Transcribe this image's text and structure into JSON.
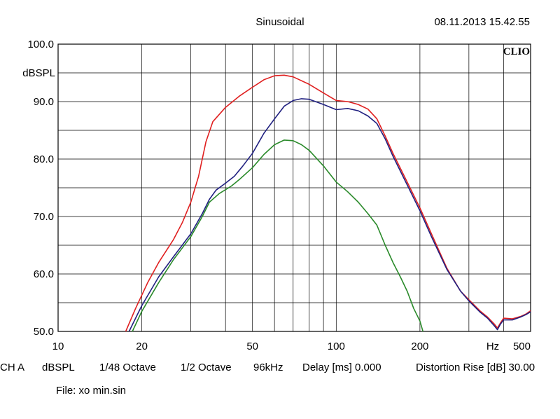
{
  "header": {
    "mode": "Sinusoidal",
    "datetime": "08.11.2013 15.42.55",
    "brand": "CLIO"
  },
  "footer": {
    "channel": "CH A",
    "unit": "dBSPL",
    "resolution": "1/48 Octave",
    "smoothing": "1/2 Octave",
    "sample_rate": "96kHz",
    "delay": "Delay [ms] 0.000",
    "distortion": "Distortion Rise [dB] 30.00",
    "file": "File: xo min.sin"
  },
  "chart_data": {
    "type": "line",
    "x_scale": "log",
    "xlim": [
      10,
      500
    ],
    "ylim": [
      50,
      100
    ],
    "grid": true,
    "ylabel": "dBSPL",
    "xlabel": "Hz",
    "x_ticks": [
      {
        "value": 10,
        "label": "10"
      },
      {
        "value": 20,
        "label": "20"
      },
      {
        "value": 50,
        "label": "50"
      },
      {
        "value": 100,
        "label": "100"
      },
      {
        "value": 200,
        "label": "200"
      },
      {
        "value": 500,
        "label": "500"
      }
    ],
    "y_ticks": [
      {
        "value": 100,
        "label": "100.0"
      },
      {
        "value": 90,
        "label": "90.0"
      },
      {
        "value": 80,
        "label": "80.0"
      },
      {
        "value": 70,
        "label": "70.0"
      },
      {
        "value": 60,
        "label": "60.0"
      },
      {
        "value": 50,
        "label": "50.0"
      }
    ],
    "series": [
      {
        "color": "#e02020",
        "points": [
          [
            17.5,
            50
          ],
          [
            19,
            54
          ],
          [
            21,
            58.5
          ],
          [
            23,
            62
          ],
          [
            26,
            66
          ],
          [
            28,
            69
          ],
          [
            30,
            72.5
          ],
          [
            32,
            77
          ],
          [
            34,
            83
          ],
          [
            36,
            86.5
          ],
          [
            40,
            89
          ],
          [
            45,
            91
          ],
          [
            50,
            92.5
          ],
          [
            55,
            93.8
          ],
          [
            60,
            94.5
          ],
          [
            65,
            94.6
          ],
          [
            70,
            94.3
          ],
          [
            80,
            93
          ],
          [
            90,
            91.5
          ],
          [
            100,
            90.2
          ],
          [
            110,
            90
          ],
          [
            120,
            89.5
          ],
          [
            130,
            88.7
          ],
          [
            140,
            87
          ],
          [
            150,
            84
          ],
          [
            160,
            81
          ],
          [
            180,
            76
          ],
          [
            200,
            71.5
          ],
          [
            220,
            67
          ],
          [
            250,
            61
          ],
          [
            280,
            57
          ],
          [
            300,
            55.5
          ],
          [
            330,
            53.5
          ],
          [
            350,
            52.5
          ],
          [
            370,
            51.3
          ],
          [
            380,
            50.6
          ],
          [
            390,
            51.5
          ],
          [
            400,
            52.3
          ],
          [
            430,
            52.2
          ],
          [
            460,
            52.6
          ],
          [
            480,
            53
          ],
          [
            500,
            53.6
          ]
        ]
      },
      {
        "color": "#202080",
        "points": [
          [
            18,
            50
          ],
          [
            20,
            54.5
          ],
          [
            23,
            59.5
          ],
          [
            26,
            63
          ],
          [
            30,
            67
          ],
          [
            33,
            70.5
          ],
          [
            35,
            73
          ],
          [
            37,
            74.6
          ],
          [
            40,
            75.8
          ],
          [
            43,
            77
          ],
          [
            46,
            78.7
          ],
          [
            50,
            81
          ],
          [
            55,
            84.5
          ],
          [
            60,
            87
          ],
          [
            65,
            89.2
          ],
          [
            70,
            90.2
          ],
          [
            75,
            90.5
          ],
          [
            80,
            90.4
          ],
          [
            90,
            89.5
          ],
          [
            100,
            88.6
          ],
          [
            110,
            88.8
          ],
          [
            120,
            88.4
          ],
          [
            130,
            87.5
          ],
          [
            140,
            86.2
          ],
          [
            150,
            83.5
          ],
          [
            160,
            80.5
          ],
          [
            180,
            75.5
          ],
          [
            200,
            71
          ],
          [
            220,
            66.5
          ],
          [
            250,
            60.8
          ],
          [
            280,
            57
          ],
          [
            300,
            55.3
          ],
          [
            330,
            53.3
          ],
          [
            350,
            52.3
          ],
          [
            370,
            51
          ],
          [
            380,
            50.3
          ],
          [
            390,
            51.3
          ],
          [
            400,
            52
          ],
          [
            430,
            52
          ],
          [
            460,
            52.5
          ],
          [
            480,
            52.9
          ],
          [
            500,
            53.4
          ]
        ]
      },
      {
        "color": "#2a8a2a",
        "points": [
          [
            18.5,
            50
          ],
          [
            20,
            53.5
          ],
          [
            23,
            58.5
          ],
          [
            26,
            62.5
          ],
          [
            30,
            66.5
          ],
          [
            33,
            70
          ],
          [
            35,
            72.5
          ],
          [
            38,
            74
          ],
          [
            42,
            75.3
          ],
          [
            45,
            76.5
          ],
          [
            50,
            78.5
          ],
          [
            55,
            80.8
          ],
          [
            60,
            82.5
          ],
          [
            65,
            83.3
          ],
          [
            70,
            83.2
          ],
          [
            75,
            82.5
          ],
          [
            80,
            81.5
          ],
          [
            90,
            78.8
          ],
          [
            100,
            76
          ],
          [
            110,
            74.3
          ],
          [
            120,
            72.5
          ],
          [
            130,
            70.5
          ],
          [
            140,
            68.5
          ],
          [
            150,
            65
          ],
          [
            160,
            62
          ],
          [
            170,
            59.5
          ],
          [
            180,
            57
          ],
          [
            190,
            54
          ],
          [
            200,
            51.8
          ],
          [
            205,
            50
          ]
        ]
      }
    ]
  }
}
